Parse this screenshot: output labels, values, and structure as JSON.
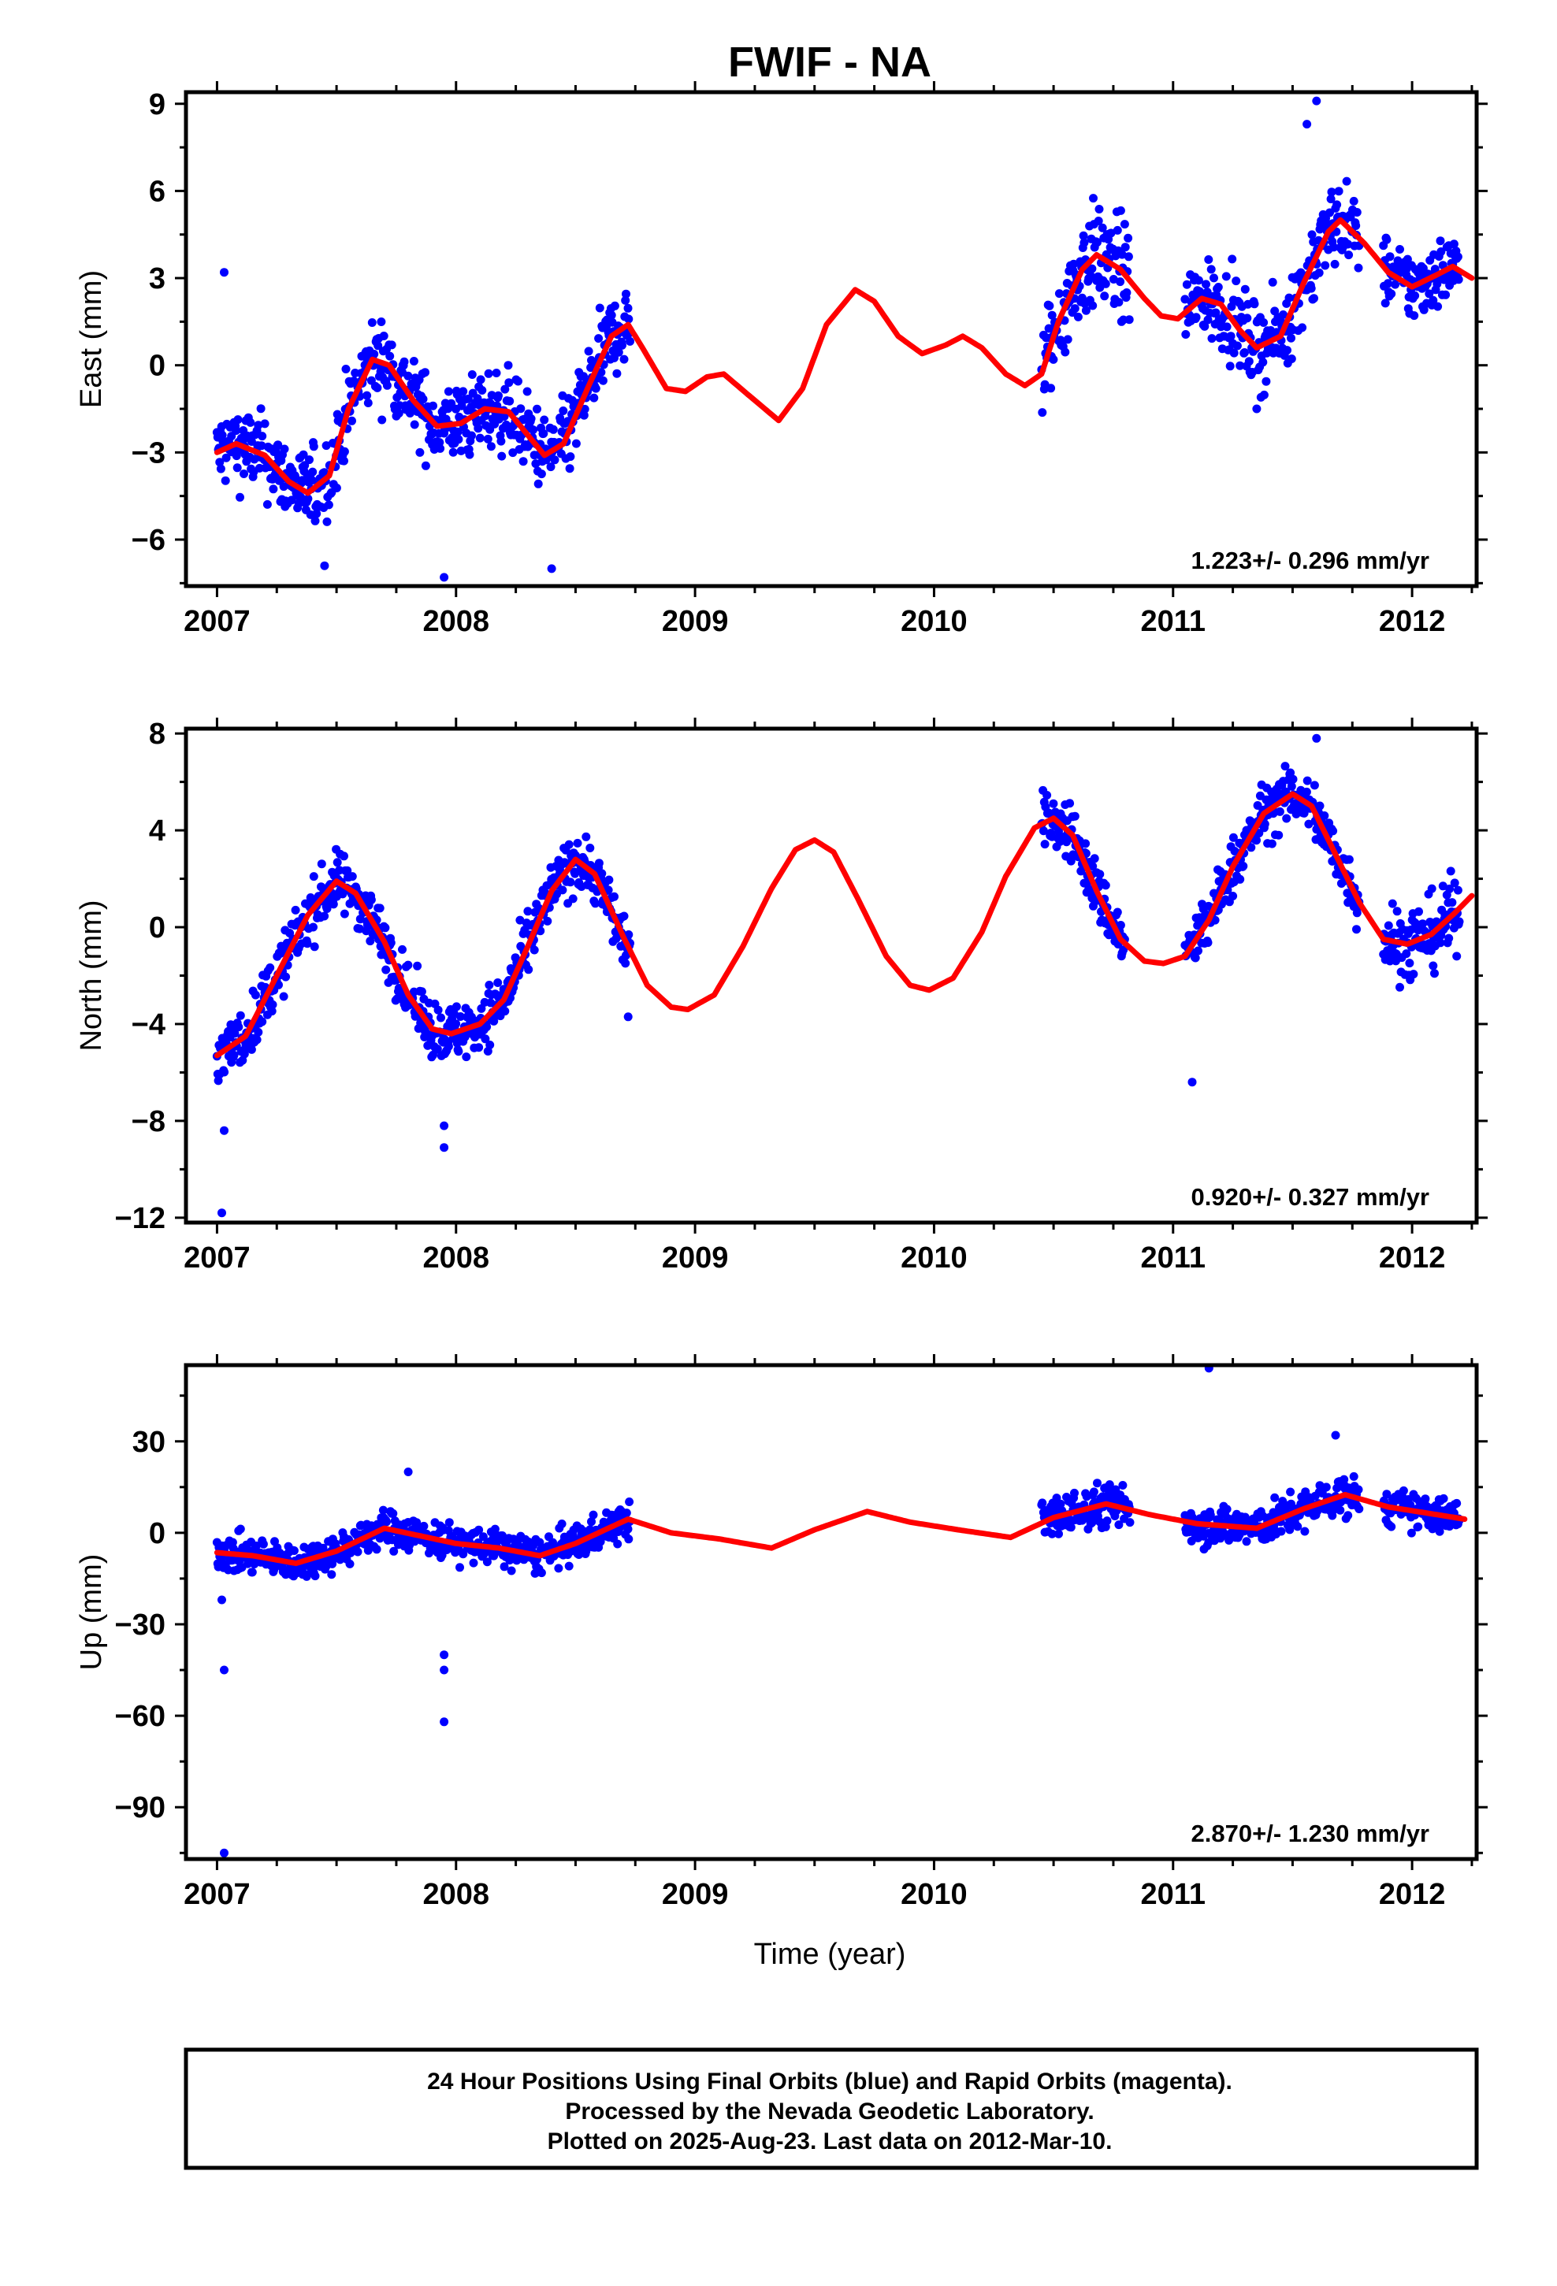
{
  "title": "FWIF - NA",
  "xlabel": "Time (year)",
  "footer": {
    "lines": [
      "24 Hour Positions Using Final Orbits (blue) and Rapid Orbits (magenta).",
      "Processed by the Nevada Geodetic Laboratory.",
      "Plotted on 2025-Aug-23. Last data on 2012-Mar-10."
    ]
  },
  "colors": {
    "data": "#0000ff",
    "model": "#ff0000",
    "axis": "#000000"
  },
  "chart_data": [
    {
      "type": "scatter",
      "ylabel": "East (mm)",
      "rate_text": "1.223+/- 0.296 mm/yr",
      "xlim": [
        2006.87,
        2012.27
      ],
      "ylim": [
        -7.6,
        9.4
      ],
      "xticks": [
        "2007",
        "2008",
        "2009",
        "2010",
        "2011",
        "2012"
      ],
      "yticks": [
        9,
        6,
        3,
        0,
        -3,
        -6
      ],
      "ytick_labels": [
        "9",
        "6",
        "3",
        "0",
        "−3",
        "−6"
      ],
      "model_curve": [
        [
          2007.0,
          -3.0
        ],
        [
          2007.08,
          -2.7
        ],
        [
          2007.2,
          -3.1
        ],
        [
          2007.3,
          -4.0
        ],
        [
          2007.38,
          -4.4
        ],
        [
          2007.47,
          -3.8
        ],
        [
          2007.55,
          -1.5
        ],
        [
          2007.65,
          0.2
        ],
        [
          2007.72,
          0.0
        ],
        [
          2007.82,
          -1.2
        ],
        [
          2007.92,
          -2.1
        ],
        [
          2008.02,
          -2.0
        ],
        [
          2008.12,
          -1.5
        ],
        [
          2008.22,
          -1.6
        ],
        [
          2008.3,
          -2.4
        ],
        [
          2008.37,
          -3.1
        ],
        [
          2008.45,
          -2.7
        ],
        [
          2008.55,
          -0.8
        ],
        [
          2008.65,
          1.0
        ],
        [
          2008.72,
          1.4
        ],
        [
          2008.78,
          0.6
        ],
        [
          2008.88,
          -0.8
        ],
        [
          2008.96,
          -0.9
        ],
        [
          2009.05,
          -0.4
        ],
        [
          2009.12,
          -0.3
        ],
        [
          2009.22,
          -1.0
        ],
        [
          2009.35,
          -1.9
        ],
        [
          2009.45,
          -0.8
        ],
        [
          2009.55,
          1.4
        ],
        [
          2009.67,
          2.6
        ],
        [
          2009.75,
          2.2
        ],
        [
          2009.85,
          1.0
        ],
        [
          2009.95,
          0.4
        ],
        [
          2010.05,
          0.7
        ],
        [
          2010.12,
          1.0
        ],
        [
          2010.2,
          0.6
        ],
        [
          2010.3,
          -0.3
        ],
        [
          2010.38,
          -0.7
        ],
        [
          2010.45,
          -0.3
        ],
        [
          2010.52,
          1.5
        ],
        [
          2010.62,
          3.3
        ],
        [
          2010.68,
          3.8
        ],
        [
          2010.78,
          3.3
        ],
        [
          2010.88,
          2.3
        ],
        [
          2010.95,
          1.7
        ],
        [
          2011.02,
          1.6
        ],
        [
          2011.12,
          2.3
        ],
        [
          2011.2,
          2.1
        ],
        [
          2011.28,
          1.2
        ],
        [
          2011.35,
          0.6
        ],
        [
          2011.45,
          1.0
        ],
        [
          2011.55,
          2.9
        ],
        [
          2011.65,
          4.6
        ],
        [
          2011.7,
          5.0
        ],
        [
          2011.8,
          4.2
        ],
        [
          2011.9,
          3.2
        ],
        [
          2012.0,
          2.7
        ],
        [
          2012.1,
          3.1
        ],
        [
          2012.17,
          3.4
        ],
        [
          2012.25,
          3.0
        ]
      ],
      "data_segments": [
        {
          "x": [
            2007.0,
            2008.73
          ],
          "spread": 1.15
        },
        {
          "x": [
            2010.45,
            2010.82
          ],
          "spread": 1.5
        },
        {
          "x": [
            2011.05,
            2011.78
          ],
          "spread": 1.2
        },
        {
          "x": [
            2011.88,
            2012.2
          ],
          "spread": 1.0
        }
      ],
      "outliers": [
        [
          2007.03,
          3.2
        ],
        [
          2007.95,
          -7.3
        ],
        [
          2008.4,
          -7.0
        ],
        [
          2007.45,
          -6.9
        ],
        [
          2011.56,
          8.3
        ],
        [
          2011.6,
          9.1
        ],
        [
          2011.35,
          -1.5
        ]
      ]
    },
    {
      "type": "scatter",
      "ylabel": "North (mm)",
      "rate_text": "0.920+/- 0.327 mm/yr",
      "xlim": [
        2006.87,
        2012.27
      ],
      "ylim": [
        -12.2,
        8.2
      ],
      "xticks": [
        "2007",
        "2008",
        "2009",
        "2010",
        "2011",
        "2012"
      ],
      "yticks": [
        8,
        4,
        0,
        -4,
        -8,
        -12
      ],
      "ytick_labels": [
        "8",
        "4",
        "0",
        "−4",
        "−8",
        "−12"
      ],
      "model_curve": [
        [
          2007.0,
          -5.3
        ],
        [
          2007.12,
          -4.5
        ],
        [
          2007.25,
          -2.0
        ],
        [
          2007.38,
          0.5
        ],
        [
          2007.5,
          1.9
        ],
        [
          2007.58,
          1.4
        ],
        [
          2007.7,
          -0.6
        ],
        [
          2007.8,
          -2.8
        ],
        [
          2007.9,
          -4.2
        ],
        [
          2007.98,
          -4.4
        ],
        [
          2008.1,
          -4.0
        ],
        [
          2008.2,
          -3.0
        ],
        [
          2008.3,
          -0.8
        ],
        [
          2008.4,
          1.5
        ],
        [
          2008.5,
          2.8
        ],
        [
          2008.58,
          2.2
        ],
        [
          2008.7,
          -0.4
        ],
        [
          2008.8,
          -2.4
        ],
        [
          2008.9,
          -3.3
        ],
        [
          2008.97,
          -3.4
        ],
        [
          2009.08,
          -2.8
        ],
        [
          2009.2,
          -0.8
        ],
        [
          2009.32,
          1.6
        ],
        [
          2009.42,
          3.2
        ],
        [
          2009.5,
          3.6
        ],
        [
          2009.58,
          3.1
        ],
        [
          2009.68,
          1.2
        ],
        [
          2009.8,
          -1.2
        ],
        [
          2009.9,
          -2.4
        ],
        [
          2009.98,
          -2.6
        ],
        [
          2010.08,
          -2.1
        ],
        [
          2010.2,
          -0.2
        ],
        [
          2010.3,
          2.1
        ],
        [
          2010.42,
          4.1
        ],
        [
          2010.5,
          4.5
        ],
        [
          2010.58,
          3.8
        ],
        [
          2010.68,
          1.5
        ],
        [
          2010.78,
          -0.5
        ],
        [
          2010.88,
          -1.4
        ],
        [
          2010.96,
          -1.5
        ],
        [
          2011.05,
          -1.2
        ],
        [
          2011.15,
          0.3
        ],
        [
          2011.25,
          2.5
        ],
        [
          2011.38,
          4.7
        ],
        [
          2011.5,
          5.5
        ],
        [
          2011.58,
          5.0
        ],
        [
          2011.68,
          3.0
        ],
        [
          2011.78,
          1.0
        ],
        [
          2011.88,
          -0.5
        ],
        [
          2011.98,
          -0.7
        ],
        [
          2012.08,
          -0.3
        ],
        [
          2012.18,
          0.6
        ],
        [
          2012.25,
          1.3
        ]
      ],
      "data_segments": [
        {
          "x": [
            2007.0,
            2008.73
          ],
          "spread": 1.0
        },
        {
          "x": [
            2010.45,
            2010.8
          ],
          "spread": 1.0
        },
        {
          "x": [
            2011.05,
            2011.78
          ],
          "spread": 1.0
        },
        {
          "x": [
            2011.88,
            2012.2
          ],
          "spread": 1.3
        }
      ],
      "outliers": [
        [
          2007.02,
          -11.8
        ],
        [
          2007.03,
          -8.4
        ],
        [
          2007.95,
          -8.2
        ],
        [
          2007.95,
          -9.1
        ],
        [
          2011.08,
          -6.4
        ],
        [
          2011.6,
          7.8
        ],
        [
          2008.72,
          -3.7
        ]
      ]
    },
    {
      "type": "scatter",
      "ylabel": "Up (mm)",
      "rate_text": "2.870+/- 1.230 mm/yr",
      "xlim": [
        2006.87,
        2012.27
      ],
      "ylim": [
        -107,
        55
      ],
      "xticks": [
        "2007",
        "2008",
        "2009",
        "2010",
        "2011",
        "2012"
      ],
      "yticks": [
        30,
        0,
        -30,
        -60,
        -90
      ],
      "ytick_labels": [
        "30",
        "0",
        "−30",
        "−60",
        "−90"
      ],
      "model_curve": [
        [
          2007.0,
          -6.5
        ],
        [
          2007.15,
          -7.5
        ],
        [
          2007.33,
          -10.0
        ],
        [
          2007.5,
          -6.0
        ],
        [
          2007.7,
          1.5
        ],
        [
          2007.85,
          -1.0
        ],
        [
          2008.0,
          -3.5
        ],
        [
          2008.18,
          -5.0
        ],
        [
          2008.35,
          -7.5
        ],
        [
          2008.5,
          -3.5
        ],
        [
          2008.72,
          4.5
        ],
        [
          2008.9,
          0.0
        ],
        [
          2009.1,
          -2.0
        ],
        [
          2009.32,
          -5.0
        ],
        [
          2009.5,
          1.0
        ],
        [
          2009.72,
          7.0
        ],
        [
          2009.9,
          3.5
        ],
        [
          2010.1,
          1.0
        ],
        [
          2010.32,
          -1.5
        ],
        [
          2010.5,
          5.0
        ],
        [
          2010.72,
          9.5
        ],
        [
          2010.9,
          6.0
        ],
        [
          2011.1,
          3.0
        ],
        [
          2011.35,
          1.5
        ],
        [
          2011.55,
          8.0
        ],
        [
          2011.72,
          12.5
        ],
        [
          2011.9,
          8.5
        ],
        [
          2012.1,
          6.0
        ],
        [
          2012.22,
          4.5
        ]
      ],
      "data_segments": [
        {
          "x": [
            2007.0,
            2008.73
          ],
          "spread": 5.0
        },
        {
          "x": [
            2010.45,
            2010.82
          ],
          "spread": 6.0
        },
        {
          "x": [
            2011.05,
            2011.78
          ],
          "spread": 5.5
        },
        {
          "x": [
            2011.88,
            2012.2
          ],
          "spread": 5.0
        }
      ],
      "outliers": [
        [
          2007.03,
          -105
        ],
        [
          2007.03,
          -45
        ],
        [
          2007.02,
          -22
        ],
        [
          2007.95,
          -40
        ],
        [
          2007.95,
          -45
        ],
        [
          2007.95,
          -62
        ],
        [
          2011.15,
          54
        ],
        [
          2011.68,
          32
        ],
        [
          2007.8,
          20
        ]
      ]
    }
  ]
}
